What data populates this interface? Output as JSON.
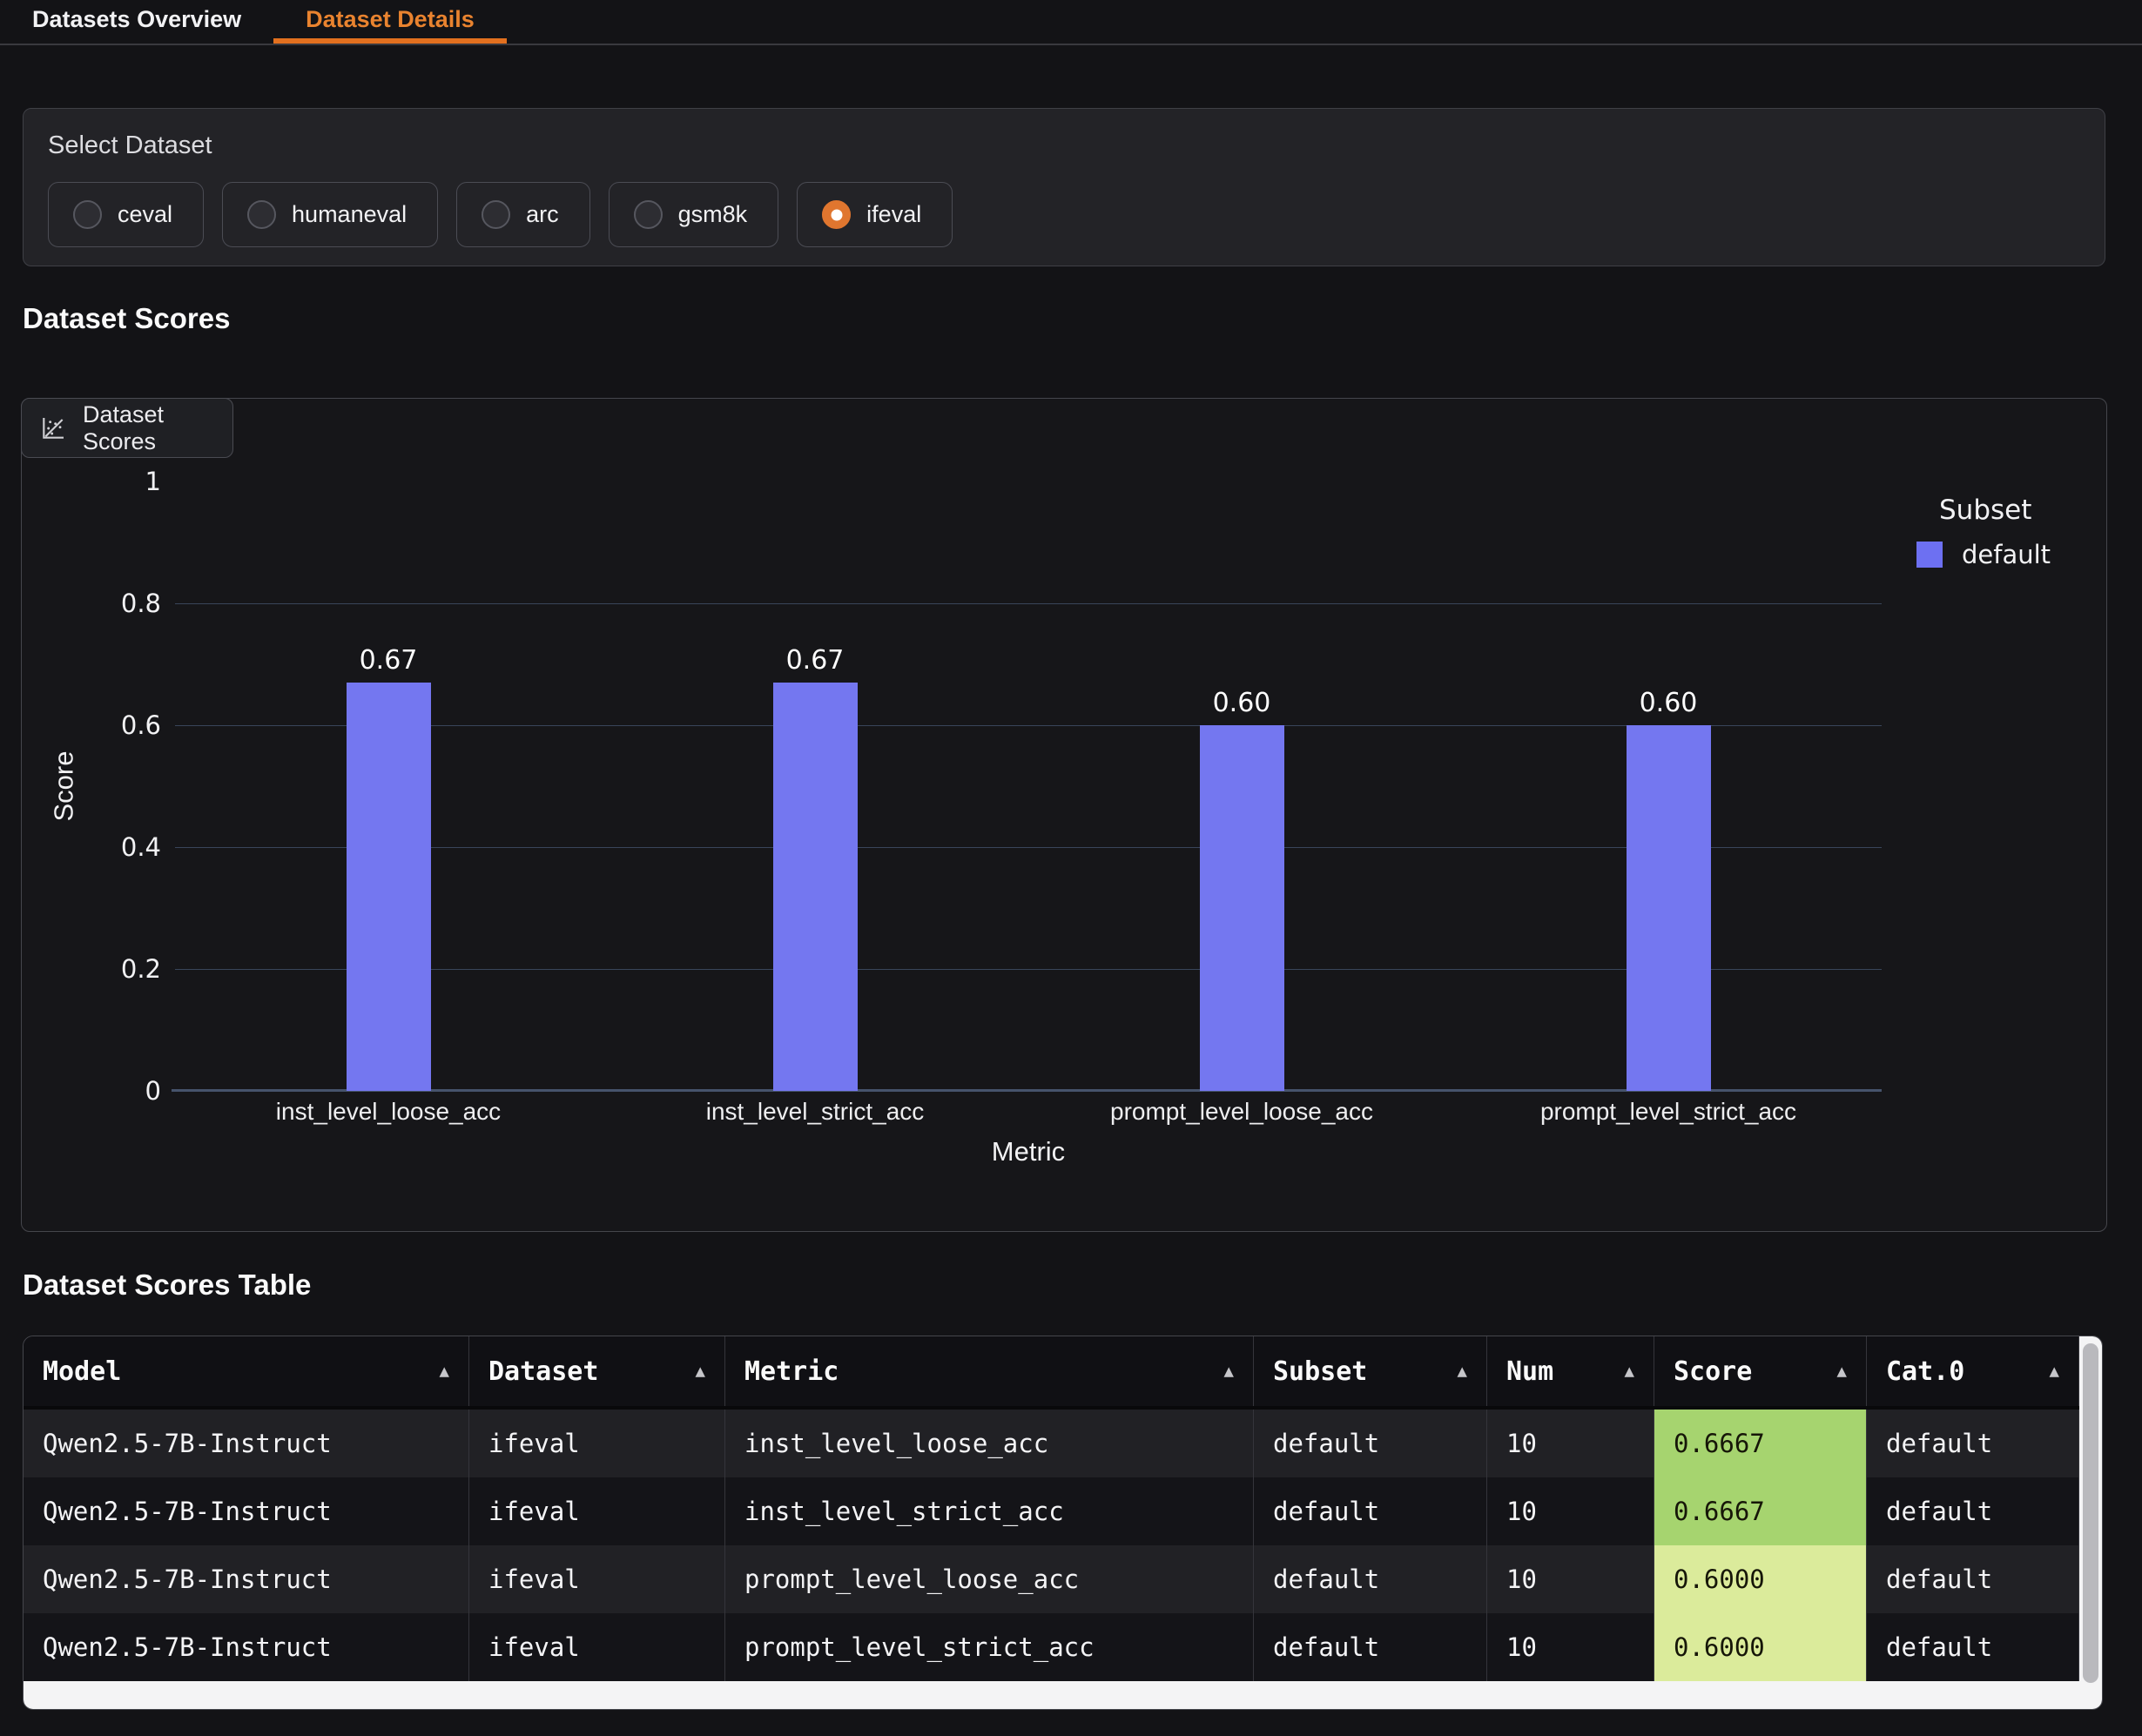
{
  "tabs": [
    {
      "label": "Datasets Overview",
      "active": false
    },
    {
      "label": "Dataset Details",
      "active": true
    }
  ],
  "select_dataset": {
    "label": "Select Dataset",
    "selected": "ifeval",
    "options": [
      {
        "label": "ceval",
        "selected": false
      },
      {
        "label": "humaneval",
        "selected": false
      },
      {
        "label": "arc",
        "selected": false
      },
      {
        "label": "gsm8k",
        "selected": false
      },
      {
        "label": "ifeval",
        "selected": true
      }
    ]
  },
  "sections": {
    "scores_heading": "Dataset Scores",
    "table_heading": "Dataset Scores Table"
  },
  "chart_panel": {
    "tab_label": "Dataset Scores",
    "icon": "scatter-chart-icon"
  },
  "chart_data": {
    "type": "bar",
    "title": "",
    "categories": [
      "inst_level_loose_acc",
      "inst_level_strict_acc",
      "prompt_level_loose_acc",
      "prompt_level_strict_acc"
    ],
    "series": [
      {
        "name": "default",
        "values": [
          0.67,
          0.67,
          0.6,
          0.6
        ]
      }
    ],
    "bar_labels": [
      "0.67",
      "0.67",
      "0.60",
      "0.60"
    ],
    "xlabel": "Metric",
    "ylabel": "Score",
    "ylim": [
      0,
      1
    ],
    "yticks": [
      0,
      0.2,
      0.4,
      0.6,
      0.8,
      1
    ],
    "grid": true,
    "legend_title": "Subset",
    "legend_position": "right",
    "bar_color": "#7477f0",
    "legend_swatch_color": "#6d70f2"
  },
  "table": {
    "sort_icon": "▲",
    "columns": [
      "Model",
      "Dataset",
      "Metric",
      "Subset",
      "Num",
      "Score",
      "Cat.0"
    ],
    "rows": [
      [
        "Qwen2.5-7B-Instruct",
        "ifeval",
        "inst_level_loose_acc",
        "default",
        "10",
        "0.6667",
        "default"
      ],
      [
        "Qwen2.5-7B-Instruct",
        "ifeval",
        "inst_level_strict_acc",
        "default",
        "10",
        "0.6667",
        "default"
      ],
      [
        "Qwen2.5-7B-Instruct",
        "ifeval",
        "prompt_level_loose_acc",
        "default",
        "10",
        "0.6000",
        "default"
      ],
      [
        "Qwen2.5-7B-Instruct",
        "ifeval",
        "prompt_level_strict_acc",
        "default",
        "10",
        "0.6000",
        "default"
      ]
    ],
    "score_colors": [
      "#a6d46f",
      "#a6d46f",
      "#dbeb9b",
      "#dbeb9b"
    ]
  }
}
